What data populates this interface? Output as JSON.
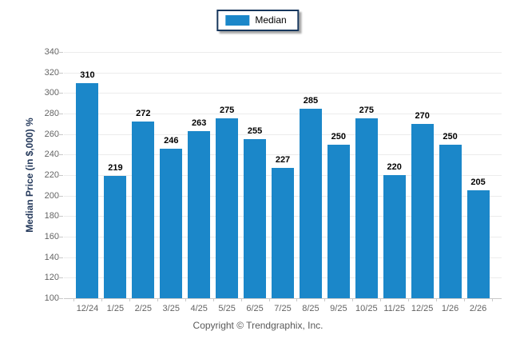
{
  "legend": {
    "items": [
      {
        "label": "Median",
        "color": "#1b87c9"
      }
    ]
  },
  "footer": {
    "copyright": "Copyright © Trendgraphix, Inc."
  },
  "colors": {
    "bar": "#1b87c9",
    "legend_border": "#17375d",
    "axis_text": "#646464",
    "y_title": "#24395b",
    "gridline": "#ececec",
    "axis_line": "#c9c9c9",
    "value_label": "#000000",
    "copyright": "#595959"
  },
  "chart_data": {
    "type": "bar",
    "title": "",
    "categories": [
      "12/24",
      "1/25",
      "2/25",
      "3/25",
      "4/25",
      "5/25",
      "6/25",
      "7/25",
      "8/25",
      "9/25",
      "10/25",
      "11/25",
      "12/25",
      "1/26",
      "2/26"
    ],
    "values": [
      310,
      219,
      272,
      246,
      263,
      275,
      255,
      227,
      285,
      250,
      275,
      220,
      270,
      250,
      205
    ],
    "series_name": "Median",
    "xlabel": "",
    "ylabel": "Median Price (in $,000) %",
    "ylim": [
      100,
      340
    ],
    "ytick_step": 20,
    "grid": true,
    "legend_position": "top-center",
    "value_labels": true
  }
}
